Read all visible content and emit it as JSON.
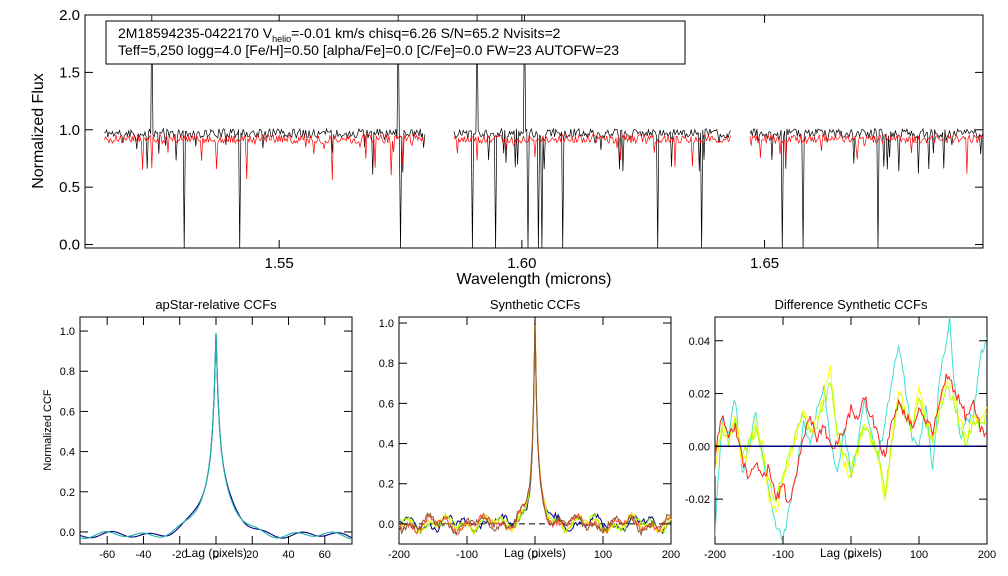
{
  "chart_data": [
    {
      "id": "spectrum",
      "type": "line",
      "title": "",
      "xlabel": "Wavelength (microns)",
      "ylabel": "Normalized Flux",
      "xlim": [
        1.51,
        1.695
      ],
      "ylim": [
        -0.03,
        2.0
      ],
      "xticks": [
        1.55,
        1.6,
        1.65
      ],
      "xtick_labels": [
        "1.55",
        "1.60",
        "1.65"
      ],
      "yticks": [
        0.0,
        0.5,
        1.0,
        1.5,
        2.0
      ],
      "ytick_labels": [
        "0.0",
        "0.5",
        "1.0",
        "1.5",
        "2.0"
      ],
      "chips": [
        [
          1.514,
          1.58
        ],
        [
          1.586,
          1.643
        ],
        [
          1.647,
          1.695
        ]
      ],
      "series": [
        {
          "name": "observed",
          "color": "#000000",
          "continuum": 0.97
        },
        {
          "name": "model",
          "color": "#ff0000",
          "continuum": 0.92
        }
      ],
      "info_box": {
        "line1_a": "2M18594235-0422170  V",
        "line1_sub": "helio",
        "line1_b": "=-0.01 km/s  chisq=6.26  S/N=65.2  Nvisits=2",
        "line2": "Teff=5,250 logg=4.0 [Fe/H]=0.50 [alpha/Fe]=0.0 [C/Fe]=0.0 FW=23 AUTOFW=23"
      }
    },
    {
      "id": "apstar",
      "type": "line",
      "title": "apStar-relative CCFs",
      "xlabel": "Lag (pixels)",
      "ylabel": "Normalized CCF",
      "xlim": [
        -75,
        75
      ],
      "ylim": [
        -0.06,
        1.07
      ],
      "xticks": [
        -60,
        -40,
        -20,
        0,
        20,
        40,
        60
      ],
      "xtick_labels": [
        "-60",
        "-40",
        "-20",
        "0",
        "20",
        "40",
        "60"
      ],
      "yticks": [
        0.0,
        0.2,
        0.4,
        0.6,
        0.8,
        1.0
      ],
      "ytick_labels": [
        "0.0",
        "0.2",
        "0.4",
        "0.6",
        "0.8",
        "1.0"
      ],
      "series": [
        {
          "name": "ccf-1",
          "color": "#000080",
          "peak": 1.0
        },
        {
          "name": "ccf-2",
          "color": "#20b2aa",
          "peak": 0.99
        }
      ]
    },
    {
      "id": "synthetic",
      "type": "line",
      "title": "Synthetic CCFs",
      "xlabel": "Lag (pixels)",
      "ylabel": "",
      "xlim": [
        -200,
        200
      ],
      "ylim": [
        -0.1,
        1.03
      ],
      "xticks": [
        -200,
        -100,
        0,
        100,
        200
      ],
      "xtick_labels": [
        "-200",
        "-100",
        "0",
        "100",
        "200"
      ],
      "yticks": [
        0.0,
        0.2,
        0.4,
        0.6,
        0.8,
        1.0
      ],
      "ytick_labels": [
        "0.0",
        "0.2",
        "0.4",
        "0.6",
        "0.8",
        "1.0"
      ],
      "zero_line": true,
      "series": [
        {
          "name": "ccf-a",
          "color": "#000080",
          "peak": 1.0
        },
        {
          "name": "ccf-b",
          "color": "#aaff00",
          "peak": 1.0
        },
        {
          "name": "ccf-c",
          "color": "#e5e500",
          "peak": 1.0
        },
        {
          "name": "ccf-d",
          "color": "#ff4040",
          "peak": 1.0
        },
        {
          "name": "ccf-e",
          "color": "#8b5a2b",
          "peak": 1.0
        }
      ]
    },
    {
      "id": "difference",
      "type": "line",
      "title": "Difference Synthetic CCFs",
      "xlabel": "Lag (pixels)",
      "ylabel": "",
      "xlim": [
        -200,
        200
      ],
      "ylim": [
        -0.037,
        0.049
      ],
      "xticks": [
        -200,
        -100,
        0,
        100,
        200
      ],
      "xtick_labels": [
        "-200",
        "-100",
        "0",
        "100",
        "200"
      ],
      "yticks": [
        -0.02,
        0.0,
        0.02,
        0.04
      ],
      "ytick_labels": [
        "-0.02",
        "0.00",
        "0.02",
        "0.04"
      ],
      "zero_line": true,
      "series": [
        {
          "name": "diff-turquoise",
          "color": "#40e0d0",
          "points": [
            [
              -200,
              -0.033
            ],
            [
              -190,
              0.01
            ],
            [
              -180,
              0.005
            ],
            [
              -170,
              0.018
            ],
            [
              -160,
              -0.01
            ],
            [
              -150,
              0.0
            ],
            [
              -140,
              0.012
            ],
            [
              -130,
              -0.005
            ],
            [
              -120,
              -0.018
            ],
            [
              -110,
              -0.03
            ],
            [
              -100,
              -0.036
            ],
            [
              -90,
              -0.022
            ],
            [
              -80,
              -0.01
            ],
            [
              -70,
              0.01
            ],
            [
              -60,
              0.0
            ],
            [
              -50,
              0.015
            ],
            [
              -40,
              0.022
            ],
            [
              -30,
              0.0
            ],
            [
              -20,
              -0.008
            ],
            [
              -10,
              0.005
            ],
            [
              0,
              -0.01
            ],
            [
              10,
              0.0
            ],
            [
              20,
              0.018
            ],
            [
              30,
              0.006
            ],
            [
              40,
              -0.005
            ],
            [
              50,
              0.01
            ],
            [
              60,
              0.025
            ],
            [
              70,
              0.038
            ],
            [
              80,
              0.022
            ],
            [
              90,
              0.004
            ],
            [
              100,
              0.0
            ],
            [
              110,
              0.015
            ],
            [
              120,
              -0.01
            ],
            [
              130,
              0.025
            ],
            [
              140,
              0.04
            ],
            [
              145,
              0.048
            ],
            [
              150,
              0.03
            ],
            [
              160,
              0.003
            ],
            [
              170,
              0.01
            ],
            [
              180,
              0.012
            ],
            [
              190,
              0.035
            ],
            [
              200,
              0.041
            ]
          ]
        },
        {
          "name": "diff-yellow",
          "color": "#ffff00",
          "points": [
            [
              -200,
              -0.01
            ],
            [
              -190,
              0.008
            ],
            [
              -180,
              0.003
            ],
            [
              -170,
              0.012
            ],
            [
              -160,
              -0.006
            ],
            [
              -150,
              -0.002
            ],
            [
              -140,
              0.01
            ],
            [
              -130,
              0.0
            ],
            [
              -120,
              -0.02
            ],
            [
              -110,
              -0.025
            ],
            [
              -100,
              -0.012
            ],
            [
              -90,
              -0.005
            ],
            [
              -80,
              0.004
            ],
            [
              -70,
              0.014
            ],
            [
              -60,
              0.005
            ],
            [
              -50,
              0.01
            ],
            [
              -40,
              0.02
            ],
            [
              -30,
              0.029
            ],
            [
              -20,
              0.004
            ],
            [
              -10,
              -0.006
            ],
            [
              0,
              -0.012
            ],
            [
              10,
              -0.002
            ],
            [
              20,
              0.01
            ],
            [
              30,
              0.002
            ],
            [
              40,
              -0.005
            ],
            [
              50,
              -0.022
            ],
            [
              60,
              0.0
            ],
            [
              70,
              0.022
            ],
            [
              80,
              0.014
            ],
            [
              90,
              0.008
            ],
            [
              100,
              0.023
            ],
            [
              110,
              0.01
            ],
            [
              120,
              0.004
            ],
            [
              130,
              0.016
            ],
            [
              140,
              0.026
            ],
            [
              150,
              0.02
            ],
            [
              160,
              0.01
            ],
            [
              170,
              0.003
            ],
            [
              180,
              0.012
            ],
            [
              190,
              0.01
            ],
            [
              200,
              0.015
            ]
          ]
        },
        {
          "name": "diff-lime",
          "color": "#aaff00",
          "points": [
            [
              -200,
              -0.003
            ],
            [
              -190,
              0.006
            ],
            [
              -180,
              0.002
            ],
            [
              -170,
              0.01
            ],
            [
              -160,
              -0.004
            ],
            [
              -150,
              0.002
            ],
            [
              -140,
              0.006
            ],
            [
              -130,
              -0.004
            ],
            [
              -120,
              -0.015
            ],
            [
              -110,
              -0.02
            ],
            [
              -100,
              -0.01
            ],
            [
              -90,
              -0.003
            ],
            [
              -80,
              0.006
            ],
            [
              -70,
              0.012
            ],
            [
              -60,
              0.004
            ],
            [
              -50,
              0.008
            ],
            [
              -40,
              0.016
            ],
            [
              -30,
              0.024
            ],
            [
              -20,
              0.006
            ],
            [
              -10,
              -0.003
            ],
            [
              0,
              -0.008
            ],
            [
              10,
              0.0
            ],
            [
              20,
              0.008
            ],
            [
              30,
              0.003
            ],
            [
              40,
              -0.003
            ],
            [
              50,
              -0.018
            ],
            [
              60,
              0.002
            ],
            [
              70,
              0.018
            ],
            [
              80,
              0.012
            ],
            [
              90,
              0.006
            ],
            [
              100,
              0.02
            ],
            [
              110,
              0.008
            ],
            [
              120,
              0.002
            ],
            [
              130,
              0.013
            ],
            [
              140,
              0.022
            ],
            [
              150,
              0.018
            ],
            [
              160,
              0.008
            ],
            [
              170,
              0.0
            ],
            [
              180,
              0.01
            ],
            [
              190,
              0.008
            ],
            [
              200,
              0.012
            ]
          ]
        },
        {
          "name": "diff-red",
          "color": "#ff2020",
          "points": [
            [
              -200,
              -0.004
            ],
            [
              -190,
              0.012
            ],
            [
              -180,
              0.003
            ],
            [
              -170,
              0.008
            ],
            [
              -160,
              -0.005
            ],
            [
              -150,
              -0.012
            ],
            [
              -140,
              -0.005
            ],
            [
              -130,
              -0.012
            ],
            [
              -120,
              -0.008
            ],
            [
              -110,
              -0.02
            ],
            [
              -100,
              -0.015
            ],
            [
              -90,
              -0.022
            ],
            [
              -80,
              -0.01
            ],
            [
              -70,
              0.004
            ],
            [
              -60,
              0.01
            ],
            [
              -50,
              0.003
            ],
            [
              -40,
              0.007
            ],
            [
              -30,
              0.0
            ],
            [
              -20,
              0.002
            ],
            [
              -10,
              0.006
            ],
            [
              0,
              0.014
            ],
            [
              10,
              0.01
            ],
            [
              20,
              0.018
            ],
            [
              30,
              0.012
            ],
            [
              40,
              0.004
            ],
            [
              50,
              -0.005
            ],
            [
              60,
              0.01
            ],
            [
              70,
              0.016
            ],
            [
              80,
              0.012
            ],
            [
              90,
              0.008
            ],
            [
              100,
              0.014
            ],
            [
              110,
              0.01
            ],
            [
              120,
              0.006
            ],
            [
              130,
              0.015
            ],
            [
              140,
              0.028
            ],
            [
              150,
              0.022
            ],
            [
              160,
              0.018
            ],
            [
              170,
              0.01
            ],
            [
              180,
              0.016
            ],
            [
              190,
              0.007
            ],
            [
              200,
              0.005
            ]
          ]
        },
        {
          "name": "diff-navy",
          "color": "#000080",
          "points": [
            [
              -200,
              0.0
            ],
            [
              200,
              0.0
            ]
          ]
        }
      ]
    }
  ]
}
